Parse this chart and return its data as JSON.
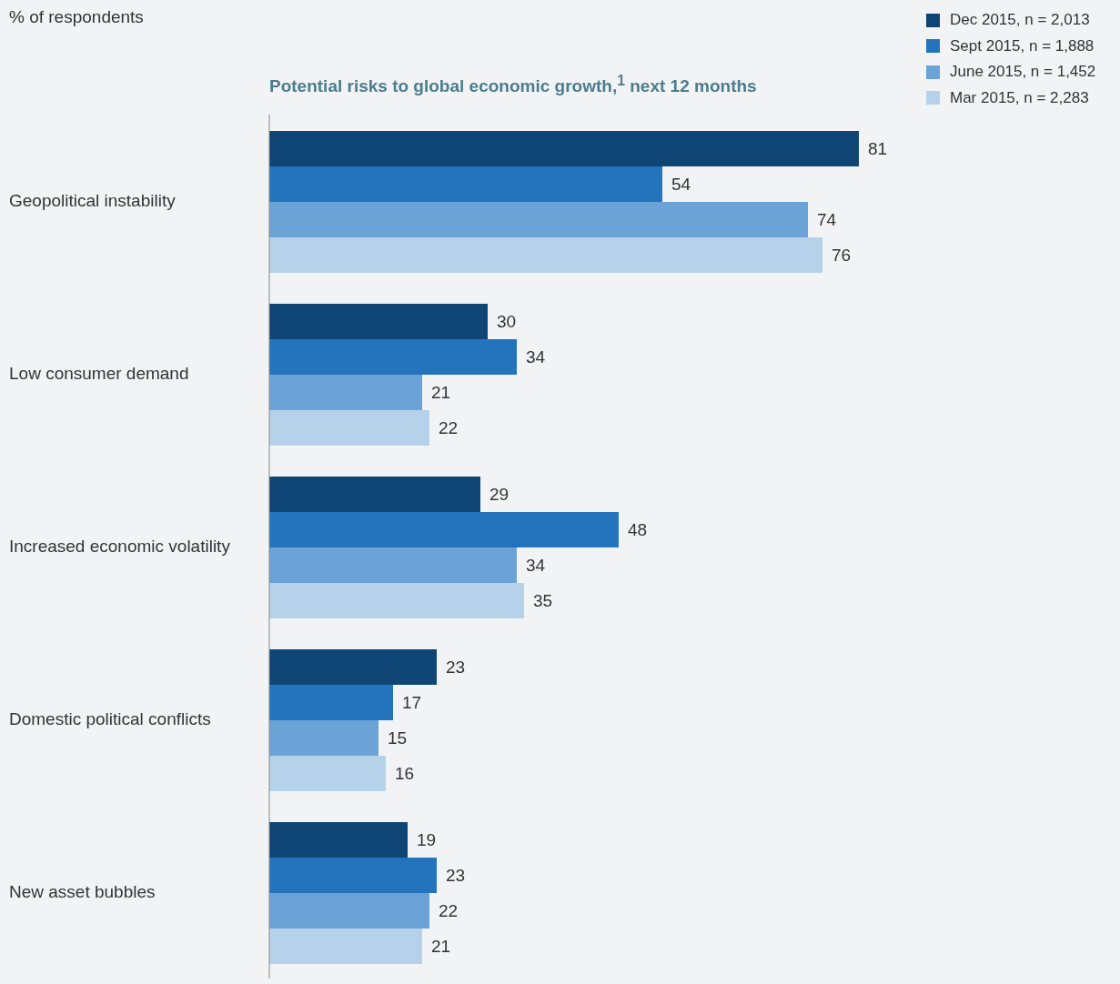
{
  "chart_data": {
    "type": "bar",
    "orientation": "horizontal",
    "title": "Potential risks to global economic growth,$^{1}$ next 12 months",
    "annotations": [
      "% of respondents"
    ],
    "categories": [
      "Geopolitical instability",
      "Low consumer demand",
      "Increased economic volatility",
      "Domestic political conflicts",
      "New asset bubbles"
    ],
    "series": [
      {
        "name": "Dec 2015, n = 2,013",
        "color": "#0e4574",
        "values": [
          81,
          30,
          29,
          23,
          19
        ]
      },
      {
        "name": "Sept 2015, n = 1,888",
        "color": "#2373bd",
        "values": [
          54,
          34,
          48,
          17,
          23
        ]
      },
      {
        "name": "June 2015, n = 1,452",
        "color": "#6ca3d6",
        "values": [
          74,
          21,
          34,
          15,
          22
        ]
      },
      {
        "name": "Mar 2015, n = 2,283",
        "color": "#b6d2ea",
        "values": [
          76,
          22,
          35,
          16,
          21
        ]
      }
    ],
    "data_labels": true,
    "legend": "top right",
    "grid": false
  }
}
